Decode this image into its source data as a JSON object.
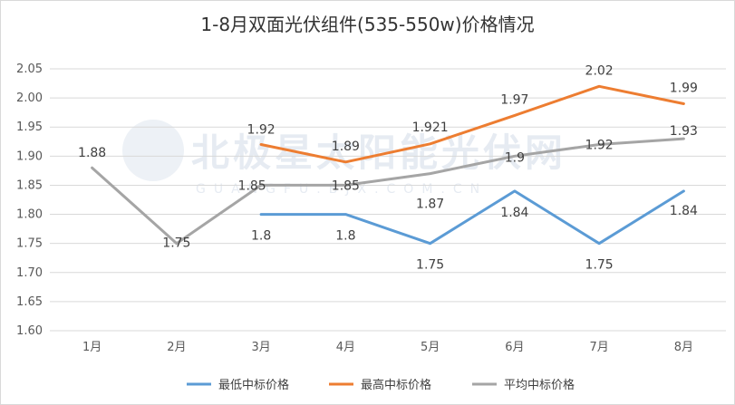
{
  "chart_data": {
    "type": "line",
    "title": "1-8月双面光伏组件(535-550w)价格情况",
    "xlabel": "",
    "ylabel": "",
    "categories": [
      "1月",
      "2月",
      "3月",
      "4月",
      "5月",
      "6月",
      "7月",
      "8月"
    ],
    "ylim": [
      1.6,
      2.05
    ],
    "yticks": [
      "1.60",
      "1.65",
      "1.70",
      "1.75",
      "1.80",
      "1.85",
      "1.90",
      "1.95",
      "2.00",
      "2.05"
    ],
    "grid": true,
    "legend_position": "bottom",
    "series": [
      {
        "name": "最低中标价格",
        "color": "#5b9bd5",
        "values": [
          null,
          null,
          1.8,
          1.8,
          1.75,
          1.84,
          1.75,
          1.84
        ],
        "labels": [
          "",
          "",
          "1.8",
          "1.8",
          "1.75",
          "1.84",
          "1.75",
          "1.84"
        ]
      },
      {
        "name": "最高中标价格",
        "color": "#ed7d31",
        "values": [
          null,
          null,
          1.92,
          1.89,
          1.921,
          1.97,
          2.02,
          1.99
        ],
        "labels": [
          "",
          "",
          "1.92",
          "1.89",
          "1.921",
          "1.97",
          "2.02",
          "1.99"
        ]
      },
      {
        "name": "平均中标价格",
        "color": "#a5a5a5",
        "values": [
          1.88,
          1.75,
          1.85,
          1.85,
          1.87,
          1.9,
          1.92,
          1.93
        ],
        "labels": [
          "1.88",
          "1.75",
          "1.85",
          "1.85",
          "1.87",
          "1.9",
          "1.92",
          "1.93"
        ]
      }
    ]
  },
  "watermark": {
    "logo_text": "北极星太阳能光伏网",
    "url_text": "GUANGFU.BJX.COM.CN"
  }
}
